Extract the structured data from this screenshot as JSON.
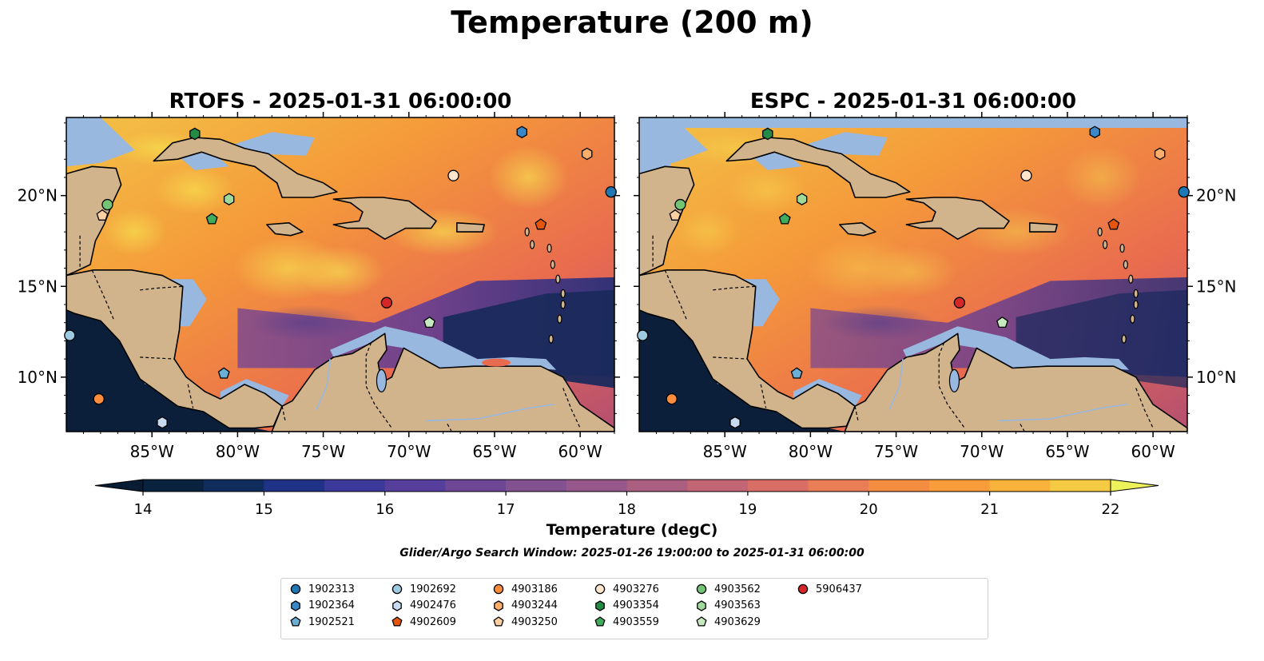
{
  "title": "Temperature (200 m)",
  "panels": [
    {
      "title": "RTOFS - 2025-01-31 06:00:00"
    },
    {
      "title": "ESPC - 2025-01-31 06:00:00"
    }
  ],
  "axes": {
    "lon_ticks": [
      "85°W",
      "80°W",
      "75°W",
      "70°W",
      "65°W",
      "60°W"
    ],
    "lat_ticks": [
      "20°N",
      "15°N",
      "10°N"
    ]
  },
  "colorbar": {
    "label": "Temperature (degC)",
    "ticks": [
      "14",
      "15",
      "16",
      "17",
      "18",
      "19",
      "20",
      "21",
      "22"
    ],
    "min": 14,
    "max": 22,
    "step": 0.5
  },
  "search_window": "Glider/Argo Search Window: 2025-01-26 19:00:00 to 2025-01-31 06:00:00",
  "legend": [
    {
      "id": "1902313",
      "marker": "circle",
      "color": "#1f77b4"
    },
    {
      "id": "1902364",
      "marker": "hexagon",
      "color": "#3a87c8"
    },
    {
      "id": "1902521",
      "marker": "pentagon",
      "color": "#6baed6"
    },
    {
      "id": "1902692",
      "marker": "circle",
      "color": "#9ecae1"
    },
    {
      "id": "4902476",
      "marker": "hexagon",
      "color": "#c6dbef"
    },
    {
      "id": "4902609",
      "marker": "pentagon",
      "color": "#e6550d"
    },
    {
      "id": "4903186",
      "marker": "circle",
      "color": "#fd8d3c"
    },
    {
      "id": "4903244",
      "marker": "hexagon",
      "color": "#fdae6b"
    },
    {
      "id": "4903250",
      "marker": "pentagon",
      "color": "#fdd0a2"
    },
    {
      "id": "4903276",
      "marker": "circle",
      "color": "#fee6ce"
    },
    {
      "id": "4903354",
      "marker": "hexagon",
      "color": "#238b45"
    },
    {
      "id": "4903559",
      "marker": "pentagon",
      "color": "#41ab5d"
    },
    {
      "id": "4903562",
      "marker": "circle",
      "color": "#74c476"
    },
    {
      "id": "4903563",
      "marker": "hexagon",
      "color": "#a1d99b"
    },
    {
      "id": "4903629",
      "marker": "pentagon",
      "color": "#c7e9c0"
    },
    {
      "id": "5906437",
      "marker": "circle",
      "color": "#d62728"
    }
  ],
  "floats": [
    {
      "id": "1902313",
      "lon": -58.2,
      "lat": 20.2
    },
    {
      "id": "1902364",
      "lon": -63.4,
      "lat": 23.5
    },
    {
      "id": "1902521",
      "lon": -80.8,
      "lat": 10.2
    },
    {
      "id": "1902692",
      "lon": -89.8,
      "lat": 12.3
    },
    {
      "id": "4902476",
      "lon": -84.4,
      "lat": 7.5
    },
    {
      "id": "4902609",
      "lon": -62.3,
      "lat": 18.4
    },
    {
      "id": "4903186",
      "lon": -88.1,
      "lat": 8.8
    },
    {
      "id": "4903244",
      "lon": -59.6,
      "lat": 22.3
    },
    {
      "id": "4903250",
      "lon": -87.9,
      "lat": 18.9
    },
    {
      "id": "4903276",
      "lon": -67.4,
      "lat": 21.1
    },
    {
      "id": "4903354",
      "lon": -82.5,
      "lat": 23.4
    },
    {
      "id": "4903559",
      "lon": -81.5,
      "lat": 18.7
    },
    {
      "id": "4903562",
      "lon": -87.6,
      "lat": 19.5
    },
    {
      "id": "4903563",
      "lon": -80.5,
      "lat": 19.8
    },
    {
      "id": "4903629",
      "lon": -68.8,
      "lat": 13.0
    },
    {
      "id": "5906437",
      "lon": -71.3,
      "lat": 14.1
    }
  ],
  "colors": {
    "land": "#d2b48c",
    "shelf": "#98b8e0",
    "deep": "#0c1f3a",
    "warm": "#f48a3c"
  }
}
